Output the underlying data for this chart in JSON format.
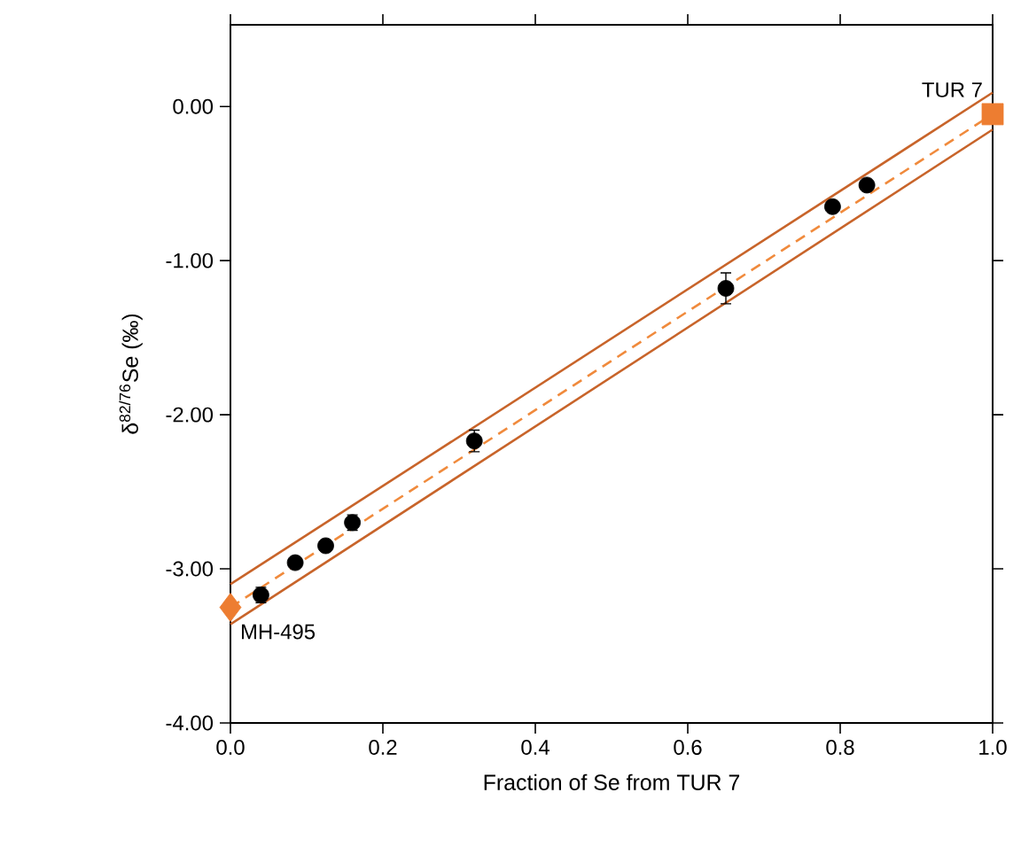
{
  "chart_data": {
    "type": "scatter",
    "xlabel": "Fraction of Se from TUR 7",
    "ylabel": "δ$^{82/76}$Se (‰)",
    "xlim": [
      0,
      1
    ],
    "ylim": [
      -4,
      0.53
    ],
    "xticks": [
      {
        "value": 0,
        "label": "0.0"
      },
      {
        "value": 0.2,
        "label": "0.2"
      },
      {
        "value": 0.4,
        "label": "0.4"
      },
      {
        "value": 0.6,
        "label": "0.6"
      },
      {
        "value": 0.8,
        "label": "0.8"
      },
      {
        "value": 1,
        "label": "1.0"
      }
    ],
    "yticks": [
      {
        "value": -4,
        "label": "-4.00"
      },
      {
        "value": -3,
        "label": "-3.00"
      },
      {
        "value": -2,
        "label": "-2.00"
      },
      {
        "value": -1,
        "label": "-1.00"
      },
      {
        "value": 0,
        "label": "0.00"
      }
    ],
    "grid": false,
    "series": [
      {
        "type": "line",
        "color": "#c8642a",
        "line_style": "solid",
        "marker": "none",
        "x": [
          0,
          1
        ],
        "values": [
          -3.1,
          0.09
        ]
      },
      {
        "type": "line",
        "color": "#c8642a",
        "line_style": "solid",
        "marker": "none",
        "x": [
          0,
          1
        ],
        "values": [
          -3.36,
          -0.15
        ]
      },
      {
        "type": "line",
        "color": "#f08a3c",
        "line_style": "dashed",
        "marker": "none",
        "x": [
          0,
          1
        ],
        "values": [
          -3.25,
          -0.05
        ]
      },
      {
        "type": "scatter",
        "color": "#000000",
        "marker": "circle",
        "x": [
          0.04,
          0.085,
          0.125,
          0.16,
          0.32,
          0.65,
          0.79,
          0.835
        ],
        "values": [
          -3.17,
          -2.96,
          -2.85,
          -2.7,
          -2.17,
          -1.18,
          -0.65,
          -0.51
        ],
        "errors": [
          0.05,
          null,
          null,
          0.05,
          0.07,
          0.1,
          null,
          null
        ]
      },
      {
        "type": "scatter",
        "name": "MH-495",
        "color": "#ed7d31",
        "marker": "diamond",
        "x": [
          0
        ],
        "values": [
          -3.25
        ]
      },
      {
        "type": "scatter",
        "name": "TUR 7",
        "color": "#ed7d31",
        "marker": "square",
        "x": [
          1
        ],
        "values": [
          -0.05
        ]
      }
    ]
  }
}
